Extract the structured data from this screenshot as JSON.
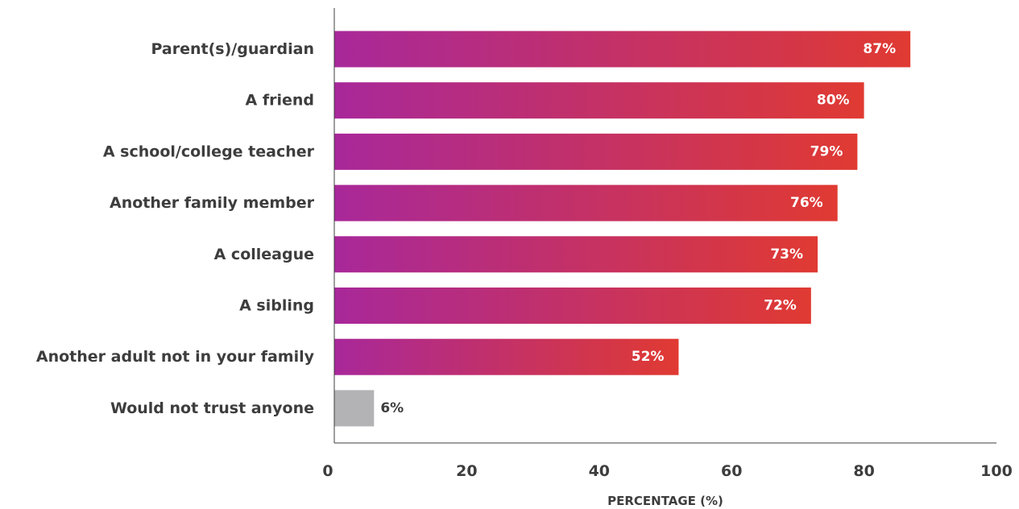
{
  "chart_data": {
    "type": "bar",
    "orientation": "horizontal",
    "categories": [
      "Parent(s)/guardian",
      "A friend",
      "A school/college teacher",
      "Another family member",
      "A colleague",
      "A sibling",
      "Another adult not in your family",
      "Would not trust anyone"
    ],
    "values": [
      87,
      80,
      79,
      76,
      73,
      72,
      52,
      6
    ],
    "value_labels": [
      "87%",
      "80%",
      "79%",
      "76%",
      "73%",
      "72%",
      "52%",
      "6%"
    ],
    "xlabel": "PERCENTAGE (%)",
    "ylabel": "",
    "xlim": [
      0,
      100
    ],
    "xticks": [
      "0",
      "20",
      "40",
      "60",
      "80",
      "100"
    ],
    "grid": false,
    "legend": "none",
    "colors": {
      "gradient_start": "#a8289a",
      "gradient_end": "#e03a32",
      "neutral_bar": "#b3b3b6",
      "text": "#3d3d3d",
      "axis": "#3d3d3d",
      "label_inside": "#ffffff"
    }
  }
}
